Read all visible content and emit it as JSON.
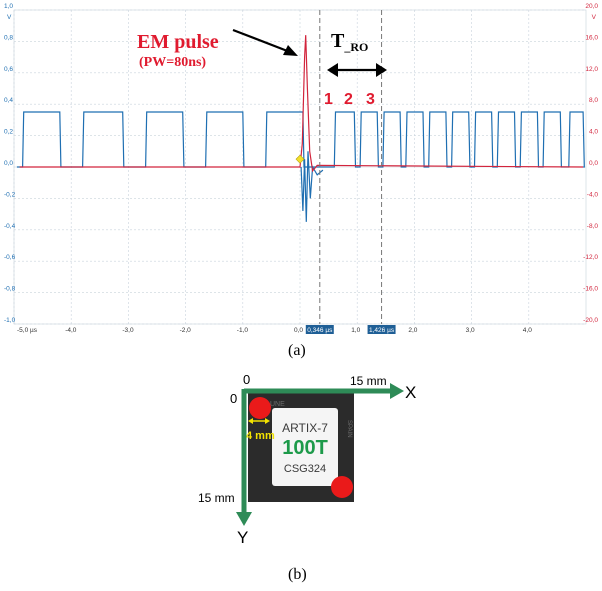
{
  "chart_data": {
    "type": "line",
    "x_unit": "µs",
    "xlim": [
      -5.0,
      5.0
    ],
    "ylim_left": [
      -1.0,
      1.0
    ],
    "ylim_right": [
      -20.0,
      20.0
    ],
    "left_unit": "V",
    "right_unit": "V",
    "x_ticks": [
      "-5,0 µs",
      "-4,0",
      "-3,0",
      "-2,0",
      "-1,0",
      "0,0",
      "1,0",
      "2,0",
      "3,0",
      "4,0"
    ],
    "x_tick_values": [
      -5,
      -4,
      -3,
      -2,
      -1,
      0,
      1,
      2,
      3,
      4
    ],
    "y_left_ticks": [
      "1,0",
      "0,8",
      "0,6",
      "0,4",
      "0,2",
      "0,0",
      "-0,2",
      "-0,4",
      "-0,6",
      "-0,8",
      "-1,0"
    ],
    "y_left_tick_values": [
      1.0,
      0.8,
      0.6,
      0.4,
      0.2,
      0.0,
      -0.2,
      -0.4,
      -0.6,
      -0.8,
      -1.0
    ],
    "y_right_ticks": [
      "20,0",
      "16,0",
      "12,0",
      "8,0",
      "4,0",
      "0,0",
      "-4,0",
      "-8,0",
      "-12,0",
      "-16,0",
      "-20,0"
    ],
    "y_right_tick_values": [
      20,
      16,
      12,
      8,
      4,
      0,
      -4,
      -8,
      -12,
      -16,
      -20
    ],
    "grid": true,
    "series": [
      {
        "color": "#1f6fb2",
        "axis": "left",
        "description_values": "square wave, low 0.0 V / high 0.35 V",
        "high": 0.35,
        "low": 0.0,
        "period_before_pulse": 1.07,
        "high_segments_before": [
          [
            -4.85,
            -4.2
          ],
          [
            -3.8,
            -3.1
          ],
          [
            -2.7,
            -2.05
          ],
          [
            -1.65,
            -1.0
          ],
          [
            -0.6,
            0.05
          ]
        ],
        "high_segments_after": [
          [
            0.6,
            0.95
          ],
          [
            1.05,
            1.35
          ],
          [
            1.45,
            1.75
          ],
          [
            1.85,
            2.15
          ],
          [
            2.25,
            2.55
          ],
          [
            2.65,
            2.95
          ],
          [
            3.05,
            3.35
          ],
          [
            3.45,
            3.75
          ],
          [
            3.85,
            4.15
          ],
          [
            4.25,
            4.55
          ],
          [
            4.7,
            4.95
          ]
        ]
      },
      {
        "color": "#d2243c",
        "axis": "right",
        "pulse_peak_time": 0.1,
        "pulse_peak_value": 16.8,
        "baseline": 0.0
      }
    ],
    "cursors": [
      {
        "label": "0,346 µs",
        "x": 0.346
      },
      {
        "label": "1,426 µs",
        "x": 1.426
      }
    ],
    "trigger_marker_x": 0.0
  },
  "annotations": {
    "em_pulse": "EM pulse",
    "pw": "(PW=80ns)",
    "t_ro_main": "T",
    "t_ro_sub": "_RO",
    "count_1": "1",
    "count_2": "2",
    "count_3": "3"
  },
  "captions": {
    "a": "(a)",
    "b": "(b)"
  },
  "chip_figure": {
    "origin_label": "0",
    "x_zero_label": "0",
    "x_end_label": "15 mm",
    "x_axis_name": "X",
    "y_end_label": "15 mm",
    "y_axis_name": "Y",
    "spacing_label": "4 mm",
    "chip_line1": "ARTIX-7",
    "chip_line2": "100T",
    "chip_line3": "CSG324",
    "marks_left": "UNE",
    "marks_right": "SPAIN"
  }
}
